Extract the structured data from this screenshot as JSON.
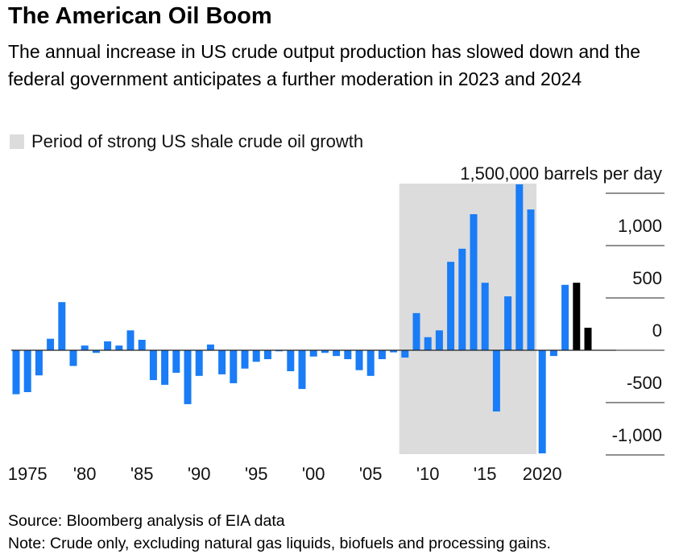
{
  "chart_data": {
    "type": "bar",
    "title": "The American Oil Boom",
    "subtitle": "The annual increase in US crude output production has slowed down and the federal government anticipates a further moderation in 2023 and 2024",
    "legend": "Period of strong US shale crude oil growth",
    "shade": {
      "from": 2008,
      "to": 2019,
      "color": "#dcdcdc"
    },
    "x": [
      1974,
      1975,
      1976,
      1977,
      1978,
      1979,
      1980,
      1981,
      1982,
      1983,
      1984,
      1985,
      1986,
      1987,
      1988,
      1989,
      1990,
      1991,
      1992,
      1993,
      1994,
      1995,
      1996,
      1997,
      1998,
      1999,
      2000,
      2001,
      2002,
      2003,
      2004,
      2005,
      2006,
      2007,
      2008,
      2009,
      2010,
      2011,
      2012,
      2013,
      2014,
      2015,
      2016,
      2017,
      2018,
      2019,
      2020,
      2021,
      2022,
      2023,
      2024
    ],
    "values": [
      -420,
      -400,
      -240,
      110,
      460,
      -150,
      45,
      -25,
      85,
      45,
      190,
      100,
      -285,
      -330,
      -215,
      -515,
      -245,
      55,
      -230,
      -315,
      -175,
      -110,
      -85,
      -10,
      -200,
      -370,
      -60,
      -25,
      -55,
      -85,
      -190,
      -245,
      -85,
      -20,
      -70,
      355,
      125,
      190,
      845,
      970,
      1300,
      645,
      -585,
      515,
      1585,
      1345,
      -985,
      -55,
      625,
      645,
      215
    ],
    "colors": [
      "#1a7cf6",
      "#1a7cf6",
      "#1a7cf6",
      "#1a7cf6",
      "#1a7cf6",
      "#1a7cf6",
      "#1a7cf6",
      "#1a7cf6",
      "#1a7cf6",
      "#1a7cf6",
      "#1a7cf6",
      "#1a7cf6",
      "#1a7cf6",
      "#1a7cf6",
      "#1a7cf6",
      "#1a7cf6",
      "#1a7cf6",
      "#1a7cf6",
      "#1a7cf6",
      "#1a7cf6",
      "#1a7cf6",
      "#1a7cf6",
      "#1a7cf6",
      "#1a7cf6",
      "#1a7cf6",
      "#1a7cf6",
      "#1a7cf6",
      "#1a7cf6",
      "#1a7cf6",
      "#1a7cf6",
      "#1a7cf6",
      "#1a7cf6",
      "#1a7cf6",
      "#1a7cf6",
      "#1a7cf6",
      "#1a7cf6",
      "#1a7cf6",
      "#1a7cf6",
      "#1a7cf6",
      "#1a7cf6",
      "#1a7cf6",
      "#1a7cf6",
      "#1a7cf6",
      "#1a7cf6",
      "#1a7cf6",
      "#1a7cf6",
      "#1a7cf6",
      "#1a7cf6",
      "#1a7cf6",
      "#000000",
      "#000000"
    ],
    "xlim": [
      1974,
      2024
    ],
    "xticks": [
      1975,
      {
        "value": 1980,
        "label": "'80"
      },
      {
        "value": 1985,
        "label": "'85"
      },
      {
        "value": 1990,
        "label": "'90"
      },
      {
        "value": 1995,
        "label": "'95"
      },
      {
        "value": 2000,
        "label": "'00"
      },
      {
        "value": 2005,
        "label": "'05"
      },
      {
        "value": 2010,
        "label": "'10"
      },
      {
        "value": 2015,
        "label": "'15"
      },
      2020
    ],
    "ylim": [
      -1000,
      1600
    ],
    "yticks": [
      {
        "value": 1500,
        "label": "1,500,000 barrels per day"
      },
      {
        "value": 1000,
        "label": "1,000"
      },
      500,
      0,
      -500,
      {
        "value": -1000,
        "label": "-1,000"
      }
    ],
    "source": "Source: Bloomberg analysis of EIA data",
    "note": "Note: Crude only, excluding natural gas liquids, biofuels and processing gains."
  }
}
